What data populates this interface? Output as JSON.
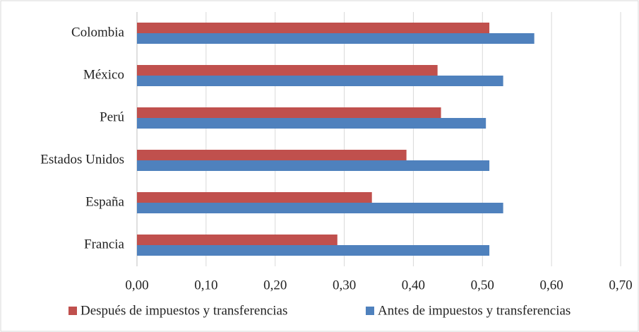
{
  "chart_data": {
    "type": "hbar",
    "categories": [
      "Colombia",
      "México",
      "Perú",
      "Estados Unidos",
      "España",
      "Francia"
    ],
    "series": [
      {
        "name": "Después de impuestos y transferencias",
        "color": "#c0504d",
        "values": [
          0.51,
          0.435,
          0.44,
          0.39,
          0.34,
          0.29
        ]
      },
      {
        "name": "Antes de impuestos y transferencias",
        "color": "#4f81bd",
        "values": [
          0.575,
          0.53,
          0.505,
          0.51,
          0.53,
          0.51
        ]
      }
    ],
    "xlim": [
      0,
      0.7
    ],
    "xticks": [
      {
        "value": 0,
        "label": "0,00"
      },
      {
        "value": 0.1,
        "label": "0,10"
      },
      {
        "value": 0.2,
        "label": "0,20"
      },
      {
        "value": 0.3,
        "label": "0,30"
      },
      {
        "value": 0.4,
        "label": "0,40"
      },
      {
        "value": 0.5,
        "label": "0,50"
      },
      {
        "value": 0.6,
        "label": "0,60"
      },
      {
        "value": 0.7,
        "label": "0,70"
      }
    ],
    "grid": true,
    "legend": "bottom"
  }
}
